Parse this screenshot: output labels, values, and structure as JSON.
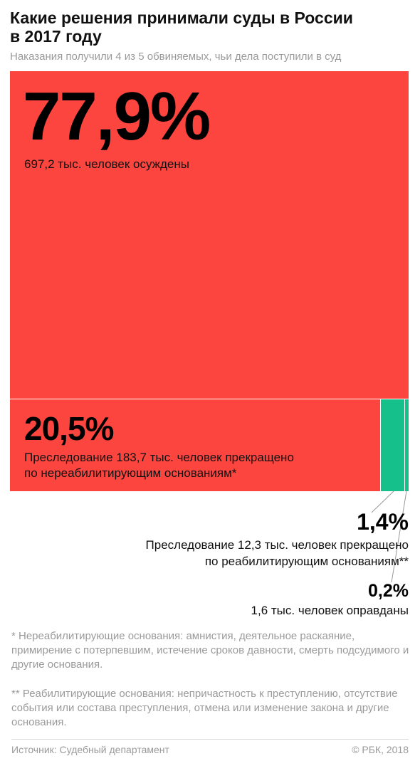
{
  "title_line1": "Какие решения принимали суды в России",
  "title_line2": "в 2017 году",
  "subtitle": "Наказания получили 4 из 5 обвиняемых, чьи дела поступили в суд",
  "colors": {
    "red": "#fc453f",
    "green": "#15c08b",
    "text": "#111111",
    "muted": "#9a9a9a"
  },
  "chart_data": {
    "type": "treemap",
    "title": "Какие решения принимали суды в России в 2017 году",
    "units": "тыс. человек",
    "items": [
      {
        "label": "77,9%",
        "percent": 77.9,
        "count": 697.2,
        "description": "697,2 тыс. человек осуждены",
        "color": "#fc453f"
      },
      {
        "label": "20,5%",
        "percent": 20.5,
        "count": 183.7,
        "description_line1": "Преследование 183,7 тыс. человек прекращено",
        "description_line2": "по нереабилитирующим основаниям*",
        "color": "#fc453f"
      },
      {
        "label": "1,4%",
        "percent": 1.4,
        "count": 12.3,
        "description_line1": "Преследование 12,3 тыс. человек прекращено",
        "description_line2": "по реабилитирующим основаниям**",
        "color": "#15c08b"
      },
      {
        "label": "0,2%",
        "percent": 0.2,
        "count": 1.6,
        "description": "1,6 тыс. человек оправданы",
        "color": "#15c08b"
      }
    ]
  },
  "notes": {
    "note1": "* Нереабилитирующие основания: амнистия, деятельное раскаяние, примирение с потерпевшим, истечение сроков давности, смерть подсудимого и другие основания.",
    "note2": "** Реабилитирующие основания: непричастность к преступлению, отсутствие события или состава преступления, отмена или изменение закона и другие основания."
  },
  "source": "Источник: Судебный департамент",
  "copyright": "© РБК, 2018"
}
